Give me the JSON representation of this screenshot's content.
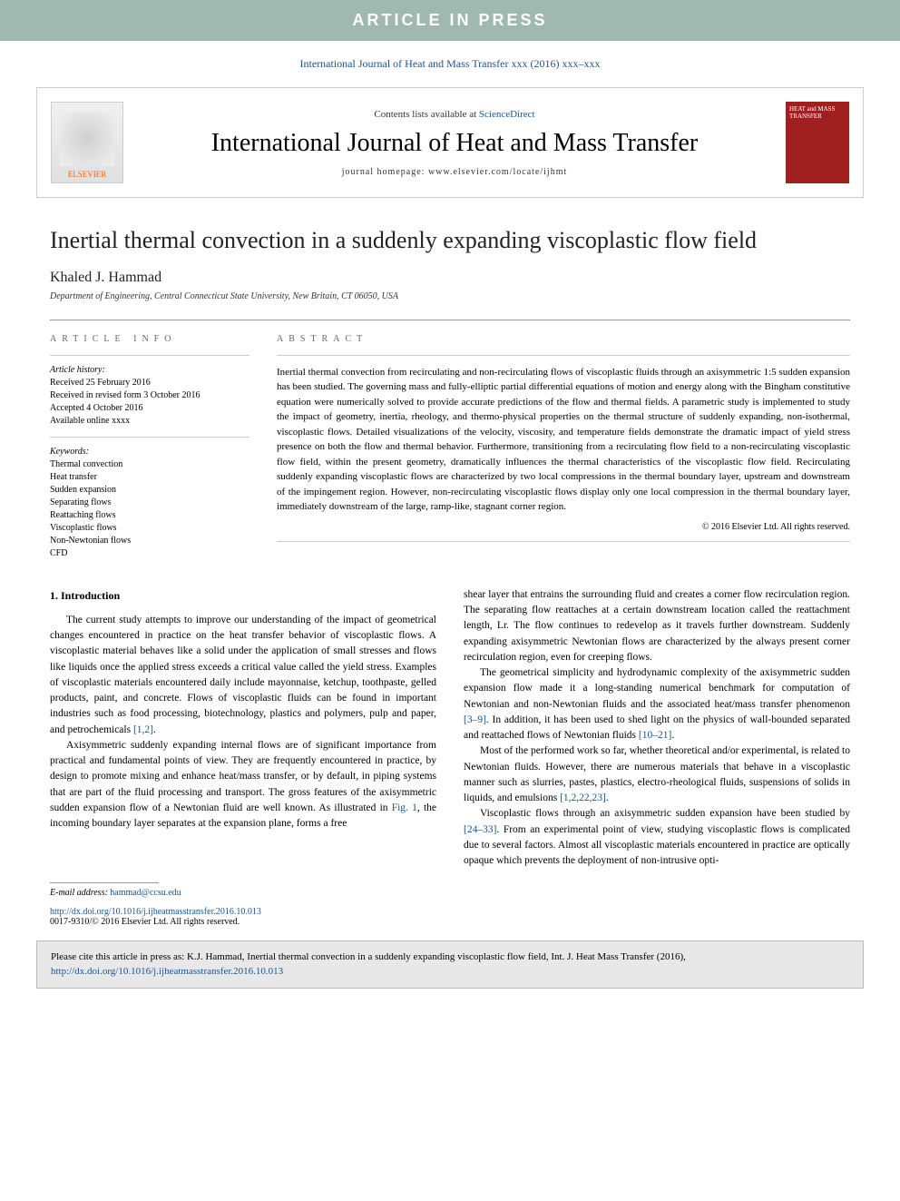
{
  "banner": "ARTICLE IN PRESS",
  "citation_line": "International Journal of Heat and Mass Transfer xxx (2016) xxx–xxx",
  "header": {
    "contents_prefix": "Contents lists available at ",
    "sd": "ScienceDirect",
    "journal": "International Journal of Heat and Mass Transfer",
    "homepage_prefix": "journal homepage: ",
    "homepage": "www.elsevier.com/locate/ijhmt",
    "publisher": "ELSEVIER",
    "cover_text": "HEAT and MASS TRANSFER"
  },
  "title": "Inertial thermal convection in a suddenly expanding viscoplastic flow field",
  "author": "Khaled J. Hammad",
  "affiliation": "Department of Engineering, Central Connecticut State University, New Britain, CT 06050, USA",
  "info": {
    "section_label": "ARTICLE INFO",
    "history_label": "Article history:",
    "h1": "Received 25 February 2016",
    "h2": "Received in revised form 3 October 2016",
    "h3": "Accepted 4 October 2016",
    "h4": "Available online xxxx",
    "keywords_label": "Keywords:",
    "keywords": [
      "Thermal convection",
      "Heat transfer",
      "Sudden expansion",
      "Separating flows",
      "Reattaching flows",
      "Viscoplastic flows",
      "Non-Newtonian flows",
      "CFD"
    ]
  },
  "abstract": {
    "label": "ABSTRACT",
    "text": "Inertial thermal convection from recirculating and non-recirculating flows of viscoplastic fluids through an axisymmetric 1:5 sudden expansion has been studied. The governing mass and fully-elliptic partial differential equations of motion and energy along with the Bingham constitutive equation were numerically solved to provide accurate predictions of the flow and thermal fields. A parametric study is implemented to study the impact of geometry, inertia, rheology, and thermo-physical properties on the thermal structure of suddenly expanding, non-isothermal, viscoplastic flows. Detailed visualizations of the velocity, viscosity, and temperature fields demonstrate the dramatic impact of yield stress presence on both the flow and thermal behavior. Furthermore, transitioning from a recirculating flow field to a non-recirculating viscoplastic flow field, within the present geometry, dramatically influences the thermal characteristics of the viscoplastic flow field. Recirculating suddenly expanding viscoplastic flows are characterized by two local compressions in the thermal boundary layer, upstream and downstream of the impingement region. However, non-recirculating viscoplastic flows display only one local compression in the thermal boundary layer, immediately downstream of the large, ramp-like, stagnant corner region.",
    "copyright": "© 2016 Elsevier Ltd. All rights reserved."
  },
  "body": {
    "section1_heading": "1. Introduction",
    "col1_p1a": "The current study attempts to improve our understanding of the impact of geometrical changes encountered in practice on the heat transfer behavior of viscoplastic flows. A viscoplastic material behaves like a solid under the application of small stresses and flows like liquids once the applied stress exceeds a critical value called the yield stress. Examples of viscoplastic materials encountered daily include mayonnaise, ketchup, toothpaste, gelled products, paint, and concrete. Flows of viscoplastic fluids can be found in important industries such as food processing, biotechnology, plastics and polymers, pulp and paper, and petrochemicals ",
    "col1_p1_ref": "[1,2]",
    "col1_p1b": ".",
    "col1_p2a": "Axisymmetric suddenly expanding internal flows are of significant importance from practical and fundamental points of view. They are frequently encountered in practice, by design to promote mixing and enhance heat/mass transfer, or by default, in piping systems that are part of the fluid processing and transport. The gross features of the axisymmetric sudden expansion flow of a Newtonian fluid are well known. As illustrated in ",
    "col1_p2_fig": "Fig. 1",
    "col1_p2b": ", the incoming boundary layer separates at the expansion plane, forms a free",
    "col2_p1": "shear layer that entrains the surrounding fluid and creates a corner flow recirculation region. The separating flow reattaches at a certain downstream location called the reattachment length, Lr. The flow continues to redevelop as it travels further downstream. Suddenly expanding axisymmetric Newtonian flows are characterized by the always present corner recirculation region, even for creeping flows.",
    "col2_p2a": "The geometrical simplicity and hydrodynamic complexity of the axisymmetric sudden expansion flow made it a long-standing numerical benchmark for computation of Newtonian and non-Newtonian fluids and the associated heat/mass transfer phenomenon ",
    "col2_p2_ref1": "[3–9]",
    "col2_p2b": ". In addition, it has been used to shed light on the physics of wall-bounded separated and reattached flows of Newtonian fluids ",
    "col2_p2_ref2": "[10–21]",
    "col2_p2c": ".",
    "col2_p3a": "Most of the performed work so far, whether theoretical and/or experimental, is related to Newtonian fluids. However, there are numerous materials that behave in a viscoplastic manner such as slurries, pastes, plastics, electro-rheological fluids, suspensions of solids in liquids, and emulsions ",
    "col2_p3_ref": "[1,2,22,23]",
    "col2_p3b": ".",
    "col2_p4a": "Viscoplastic flows through an axisymmetric sudden expansion have been studied by ",
    "col2_p4_ref": "[24–33]",
    "col2_p4b": ". From an experimental point of view, studying viscoplastic flows is complicated due to several factors. Almost all viscoplastic materials encountered in practice are optically opaque which prevents the deployment of non-intrusive opti-"
  },
  "email_label": "E-mail address: ",
  "email": "hammad@ccsu.edu",
  "doi": {
    "url": "http://dx.doi.org/10.1016/j.ijheatmasstransfer.2016.10.013",
    "issn": "0017-9310/© 2016 Elsevier Ltd. All rights reserved."
  },
  "cite_box": {
    "prefix": "Please cite this article in press as: K.J. Hammad, Inertial thermal convection in a suddenly expanding viscoplastic flow field, Int. J. Heat Mass Transfer (2016), ",
    "url": "http://dx.doi.org/10.1016/j.ijheatmasstransfer.2016.10.013"
  },
  "colors": {
    "banner_bg": "#9fb8b0",
    "link": "#1a5490",
    "elsevier": "#ff6600",
    "cover": "#a02020",
    "cite_bg": "#e8e8e8"
  }
}
